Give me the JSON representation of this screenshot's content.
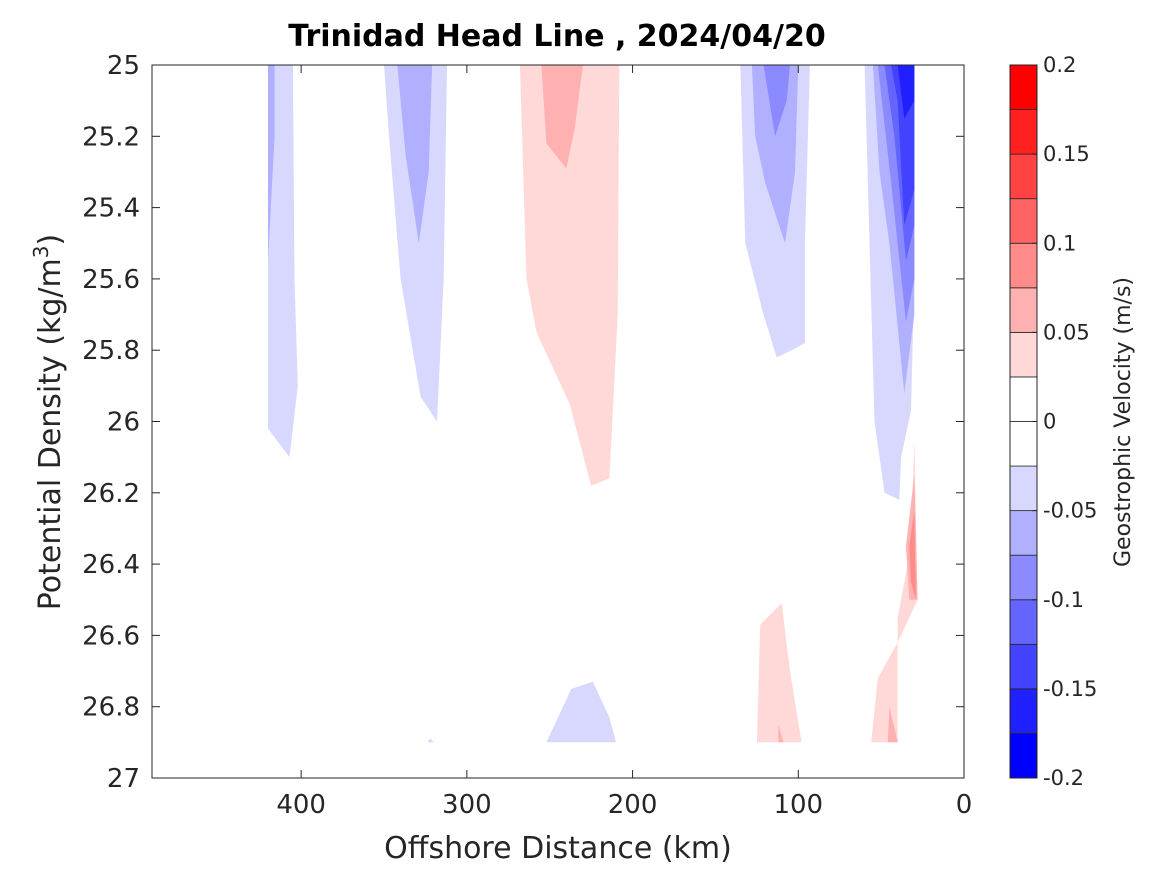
{
  "chart_data": {
    "type": "heatmap",
    "subtype": "filled-contour",
    "title": "Trinidad Head Line , 2024/04/20",
    "xlabel": "Offshore Distance (km)",
    "ylabel_prefix": "Potential Density (kg/m",
    "ylabel_sup": "3",
    "ylabel_suffix": ")",
    "xlim": [
      490,
      0
    ],
    "x_reversed": true,
    "ylim": [
      25,
      27
    ],
    "y_reversed": true,
    "xticks": [
      400,
      300,
      200,
      100,
      0
    ],
    "xtick_labels": [
      "400",
      "300",
      "200",
      "100",
      "0"
    ],
    "yticks": [
      25,
      25.2,
      25.4,
      25.6,
      25.8,
      26,
      26.2,
      26.4,
      26.6,
      26.8,
      27
    ],
    "ytick_labels": [
      "25",
      "25.2",
      "25.4",
      "25.6",
      "25.8",
      "26",
      "26.2",
      "26.4",
      "26.6",
      "26.8",
      "27"
    ],
    "colorbar": {
      "label": "Geostrophic Velocity (m/s)",
      "range": [
        -0.2,
        0.2
      ],
      "ticks": [
        0.2,
        0.15,
        0.1,
        0.05,
        0,
        -0.05,
        -0.1,
        -0.15,
        -0.2
      ],
      "tick_labels": [
        "0.2",
        "0.15",
        "0.1",
        "0.05",
        "0",
        "-0.05",
        "-0.1",
        "-0.15",
        "-0.2"
      ],
      "levels": [
        {
          "from": -0.2,
          "to": -0.175,
          "color": "#0000ff"
        },
        {
          "from": -0.175,
          "to": -0.15,
          "color": "#2020ff"
        },
        {
          "from": -0.15,
          "to": -0.125,
          "color": "#4242ff"
        },
        {
          "from": -0.125,
          "to": -0.1,
          "color": "#6464ff"
        },
        {
          "from": -0.1,
          "to": -0.075,
          "color": "#8b8bff"
        },
        {
          "from": -0.075,
          "to": -0.05,
          "color": "#b0b0ff"
        },
        {
          "from": -0.05,
          "to": -0.025,
          "color": "#d8d8ff"
        },
        {
          "from": -0.025,
          "to": 0,
          "color": "#ffffff"
        },
        {
          "from": 0,
          "to": 0.025,
          "color": "#ffffff"
        },
        {
          "from": 0.025,
          "to": 0.05,
          "color": "#ffd8d8"
        },
        {
          "from": 0.05,
          "to": 0.075,
          "color": "#ffb0b0"
        },
        {
          "from": 0.075,
          "to": 0.1,
          "color": "#ff8b8b"
        },
        {
          "from": 0.1,
          "to": 0.125,
          "color": "#ff6464"
        },
        {
          "from": 0.125,
          "to": 0.15,
          "color": "#ff4242"
        },
        {
          "from": 0.15,
          "to": 0.175,
          "color": "#ff2020"
        },
        {
          "from": 0.175,
          "to": 0.2,
          "color": "#ff0000"
        }
      ]
    },
    "regions": [
      {
        "value": -0.05,
        "color": "#d8d8ff",
        "points": [
          [
            420,
            25
          ],
          [
            405,
            25
          ],
          [
            404,
            25.6
          ],
          [
            402,
            25.9
          ],
          [
            407,
            26.1
          ],
          [
            420,
            26.02
          ]
        ]
      },
      {
        "value": -0.075,
        "color": "#b0b0ff",
        "points": [
          [
            420,
            25
          ],
          [
            416,
            25
          ],
          [
            416,
            25.2
          ],
          [
            420,
            25.55
          ]
        ]
      },
      {
        "value": -0.05,
        "color": "#d8d8ff",
        "points": [
          [
            350,
            25
          ],
          [
            312,
            25
          ],
          [
            314,
            25.6
          ],
          [
            318,
            26.0
          ],
          [
            328,
            25.93
          ],
          [
            340,
            25.6
          ],
          [
            347,
            25.2
          ]
        ]
      },
      {
        "value": -0.075,
        "color": "#b0b0ff",
        "points": [
          [
            342,
            25
          ],
          [
            321,
            25
          ],
          [
            323,
            25.3
          ],
          [
            329,
            25.5
          ],
          [
            337,
            25.25
          ]
        ]
      },
      {
        "value": 0.05,
        "color": "#ffd8d8",
        "points": [
          [
            268,
            25
          ],
          [
            208,
            25
          ],
          [
            209,
            25.7
          ],
          [
            214,
            26.16
          ],
          [
            225,
            26.18
          ],
          [
            238,
            25.95
          ],
          [
            258,
            25.75
          ],
          [
            264,
            25.6
          ]
        ]
      },
      {
        "value": 0.075,
        "color": "#ffb0b0",
        "points": [
          [
            255,
            25
          ],
          [
            230,
            25
          ],
          [
            235,
            25.18
          ],
          [
            240,
            25.29
          ],
          [
            252,
            25.22
          ]
        ]
      },
      {
        "value": -0.05,
        "color": "#d8d8ff",
        "points": [
          [
            135,
            25
          ],
          [
            93,
            25
          ],
          [
            96,
            25.5
          ],
          [
            96,
            25.78
          ],
          [
            104,
            25.8
          ],
          [
            113,
            25.82
          ],
          [
            121,
            25.7
          ],
          [
            132,
            25.5
          ]
        ]
      },
      {
        "value": -0.075,
        "color": "#b0b0ff",
        "points": [
          [
            128,
            25
          ],
          [
            100,
            25
          ],
          [
            102,
            25.3
          ],
          [
            108,
            25.5
          ],
          [
            120,
            25.33
          ],
          [
            126,
            25.2
          ]
        ]
      },
      {
        "value": -0.1,
        "color": "#8b8bff",
        "points": [
          [
            121,
            25
          ],
          [
            105,
            25
          ],
          [
            107,
            25.1
          ],
          [
            114,
            25.2
          ]
        ]
      },
      {
        "value": -0.05,
        "color": "#d8d8ff",
        "points": [
          [
            60,
            25
          ],
          [
            30,
            25
          ],
          [
            30,
            25.6
          ],
          [
            32,
            25.97
          ],
          [
            38,
            26.1
          ],
          [
            39,
            26.22
          ],
          [
            48,
            26.2
          ],
          [
            54,
            26.0
          ],
          [
            57,
            25.5
          ]
        ]
      },
      {
        "value": -0.075,
        "color": "#b0b0ff",
        "points": [
          [
            55,
            25
          ],
          [
            30,
            25
          ],
          [
            30,
            25.7
          ],
          [
            36,
            25.92
          ],
          [
            45,
            25.5
          ],
          [
            51,
            25.3
          ]
        ]
      },
      {
        "value": -0.1,
        "color": "#8b8bff",
        "points": [
          [
            52,
            25
          ],
          [
            30,
            25
          ],
          [
            30,
            25.6
          ],
          [
            35,
            25.72
          ],
          [
            44,
            25.33
          ]
        ]
      },
      {
        "value": -0.125,
        "color": "#6464ff",
        "points": [
          [
            48,
            25
          ],
          [
            30,
            25
          ],
          [
            30,
            25.45
          ],
          [
            35,
            25.55
          ],
          [
            42,
            25.2
          ]
        ]
      },
      {
        "value": -0.15,
        "color": "#4242ff",
        "points": [
          [
            44,
            25
          ],
          [
            30,
            25
          ],
          [
            30,
            25.35
          ],
          [
            36,
            25.45
          ],
          [
            40,
            25.1
          ]
        ]
      },
      {
        "value": -0.175,
        "color": "#2020ff",
        "points": [
          [
            40,
            25
          ],
          [
            30,
            25
          ],
          [
            30,
            25.1
          ],
          [
            36,
            25.15
          ]
        ]
      },
      {
        "value": 0.05,
        "color": "#ffd8d8",
        "points": [
          [
            30,
            26.05
          ],
          [
            28,
            26.5
          ],
          [
            40,
            26.62
          ],
          [
            52,
            26.72
          ],
          [
            56,
            26.9
          ],
          [
            40,
            26.9
          ],
          [
            40,
            26.55
          ],
          [
            32,
            26.35
          ]
        ]
      },
      {
        "value": 0.075,
        "color": "#ffb0b0",
        "points": [
          [
            30,
            26.15
          ],
          [
            28,
            26.5
          ],
          [
            33,
            26.5
          ],
          [
            35,
            26.35
          ]
        ]
      },
      {
        "value": 0.1,
        "color": "#ff8b8b",
        "points": [
          [
            30,
            26.25
          ],
          [
            29,
            26.5
          ],
          [
            32,
            26.45
          ],
          [
            33,
            26.35
          ]
        ]
      },
      {
        "value": 0.075,
        "color": "#ffb0b0",
        "points": [
          [
            45,
            26.8
          ],
          [
            40,
            26.9
          ],
          [
            46,
            26.9
          ]
        ]
      },
      {
        "value": 0.05,
        "color": "#ffd8d8",
        "points": [
          [
            125,
            26.9
          ],
          [
            123,
            26.57
          ],
          [
            110,
            26.51
          ],
          [
            105,
            26.7
          ],
          [
            98,
            26.9
          ]
        ]
      },
      {
        "value": 0.075,
        "color": "#ffb0b0",
        "points": [
          [
            112,
            26.85
          ],
          [
            109,
            26.9
          ],
          [
            112,
            26.9
          ]
        ]
      },
      {
        "value": -0.05,
        "color": "#d8d8ff",
        "points": [
          [
            252,
            26.9
          ],
          [
            237,
            26.75
          ],
          [
            224,
            26.73
          ],
          [
            214,
            26.83
          ],
          [
            210,
            26.9
          ]
        ]
      },
      {
        "value": -0.05,
        "color": "#d8d8ff",
        "points": [
          [
            322,
            26.89
          ],
          [
            320,
            26.9
          ],
          [
            324,
            26.9
          ]
        ]
      }
    ]
  }
}
